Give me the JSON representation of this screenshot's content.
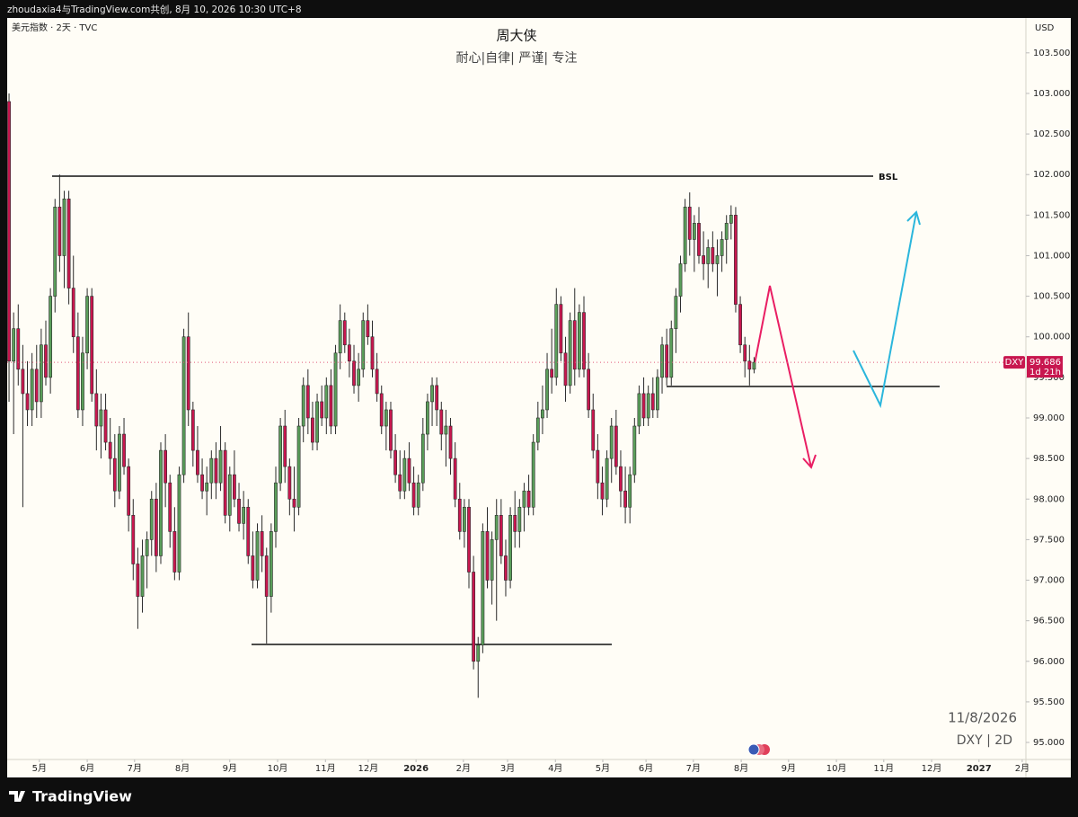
{
  "top_bar": "zhoudaxia4与TradingView.com共创, 8月 10, 2026 10:30 UTC+8",
  "footer": {
    "brand": "TradingView"
  },
  "chart_data": {
    "type": "candlestick",
    "title": "周大侠",
    "subtitle": "耐心|自律| 严谨| 专注",
    "symbol_label": "美元指数 · 2天 · TVC",
    "currency": "USD",
    "annotation": "BSL",
    "price_tag": "DXY",
    "countdown": "1d 21h",
    "last_price": 99.686,
    "watermark": [
      "11/8/2026",
      "DXY | 2D"
    ],
    "up_color": "#5a9e5a",
    "down_color": "#c8174f",
    "xlim": [
      -0.4,
      221.1
    ],
    "xticks": [
      {
        "value": 6.6,
        "label": "5月"
      },
      {
        "value": 17.0,
        "label": "6月"
      },
      {
        "value": 27.3,
        "label": "7月"
      },
      {
        "value": 37.7,
        "label": "8月"
      },
      {
        "value": 48.0,
        "label": "9月"
      },
      {
        "value": 58.4,
        "label": "10月"
      },
      {
        "value": 68.8,
        "label": "11月"
      },
      {
        "value": 78.1,
        "label": "12月"
      },
      {
        "value": 88.5,
        "label": "2026"
      },
      {
        "value": 98.8,
        "label": "2月"
      },
      {
        "value": 108.4,
        "label": "3月"
      },
      {
        "value": 118.8,
        "label": "4月"
      },
      {
        "value": 129.1,
        "label": "5月"
      },
      {
        "value": 138.5,
        "label": "6月"
      },
      {
        "value": 148.8,
        "label": "7月"
      },
      {
        "value": 159.2,
        "label": "8月"
      },
      {
        "value": 169.5,
        "label": "9月"
      },
      {
        "value": 179.9,
        "label": "10月"
      },
      {
        "value": 190.2,
        "label": "11月"
      },
      {
        "value": 200.6,
        "label": "12月"
      },
      {
        "value": 210.9,
        "label": "2027"
      },
      {
        "value": 220.3,
        "label": "2月"
      }
    ],
    "ylim": [
      94.79,
      103.93
    ],
    "yticks": [
      {
        "value": 95,
        "label": "95.000"
      },
      {
        "value": 95.5,
        "label": "95.500"
      },
      {
        "value": 96,
        "label": "96.000"
      },
      {
        "value": 96.5,
        "label": "96.500"
      },
      {
        "value": 97,
        "label": "97.000"
      },
      {
        "value": 97.5,
        "label": "97.500"
      },
      {
        "value": 98,
        "label": "98.000"
      },
      {
        "value": 98.5,
        "label": "98.500"
      },
      {
        "value": 99,
        "label": "99.000"
      },
      {
        "value": 99.5,
        "label": "99.500"
      },
      {
        "value": 100,
        "label": "100.000"
      },
      {
        "value": 100.5,
        "label": "100.500"
      },
      {
        "value": 101,
        "label": "101.000"
      },
      {
        "value": 101.5,
        "label": "101.500"
      },
      {
        "value": 102,
        "label": "102.000"
      },
      {
        "value": 102.5,
        "label": "102.500"
      },
      {
        "value": 103,
        "label": "103.000"
      },
      {
        "value": 103.5,
        "label": "103.500"
      }
    ],
    "ohlc": [
      [
        102.9,
        103.0,
        99.2,
        99.7
      ],
      [
        99.7,
        100.3,
        98.8,
        100.1
      ],
      [
        100.1,
        100.4,
        99.4,
        99.6
      ],
      [
        99.6,
        99.9,
        97.9,
        99.3
      ],
      [
        99.3,
        99.7,
        98.9,
        99.1
      ],
      [
        99.1,
        99.8,
        98.9,
        99.6
      ],
      [
        99.6,
        99.9,
        99.0,
        99.2
      ],
      [
        99.2,
        100.1,
        99.0,
        99.9
      ],
      [
        99.9,
        100.2,
        99.4,
        99.5
      ],
      [
        99.5,
        100.6,
        99.3,
        100.5
      ],
      [
        100.5,
        101.7,
        100.3,
        101.6
      ],
      [
        101.6,
        102.0,
        100.8,
        101.0
      ],
      [
        101.0,
        101.8,
        100.6,
        101.7
      ],
      [
        101.7,
        101.8,
        100.4,
        100.6
      ],
      [
        100.6,
        101.0,
        99.8,
        100.0
      ],
      [
        100.0,
        100.3,
        99.0,
        99.1
      ],
      [
        99.1,
        100.0,
        98.9,
        99.8
      ],
      [
        99.8,
        100.6,
        99.6,
        100.5
      ],
      [
        100.5,
        100.6,
        99.2,
        99.3
      ],
      [
        99.3,
        99.6,
        98.6,
        98.9
      ],
      [
        98.9,
        99.3,
        98.5,
        99.1
      ],
      [
        99.1,
        99.3,
        98.6,
        98.7
      ],
      [
        98.7,
        99.0,
        98.3,
        98.5
      ],
      [
        98.5,
        98.8,
        97.9,
        98.1
      ],
      [
        98.1,
        98.9,
        98.0,
        98.8
      ],
      [
        98.8,
        99.0,
        98.3,
        98.4
      ],
      [
        98.4,
        98.5,
        97.6,
        97.8
      ],
      [
        97.8,
        98.0,
        97.0,
        97.2
      ],
      [
        97.2,
        97.4,
        96.4,
        96.8
      ],
      [
        96.8,
        97.5,
        96.6,
        97.3
      ],
      [
        97.3,
        97.6,
        96.9,
        97.5
      ],
      [
        97.5,
        98.1,
        97.3,
        98.0
      ],
      [
        98.0,
        98.2,
        97.1,
        97.3
      ],
      [
        97.3,
        98.7,
        97.2,
        98.6
      ],
      [
        98.6,
        98.8,
        97.9,
        98.2
      ],
      [
        98.2,
        98.3,
        97.4,
        97.6
      ],
      [
        97.6,
        97.9,
        97.0,
        97.1
      ],
      [
        97.1,
        98.4,
        97.0,
        98.3
      ],
      [
        98.3,
        100.1,
        98.2,
        100.0
      ],
      [
        100.0,
        100.3,
        98.9,
        99.1
      ],
      [
        99.1,
        99.2,
        98.4,
        98.6
      ],
      [
        98.6,
        98.9,
        98.2,
        98.3
      ],
      [
        98.3,
        98.5,
        98.0,
        98.1
      ],
      [
        98.1,
        98.4,
        97.8,
        98.2
      ],
      [
        98.2,
        98.6,
        98.0,
        98.5
      ],
      [
        98.5,
        98.7,
        98.0,
        98.2
      ],
      [
        98.2,
        98.9,
        98.1,
        98.6
      ],
      [
        98.6,
        98.7,
        97.7,
        97.8
      ],
      [
        97.8,
        98.4,
        97.6,
        98.3
      ],
      [
        98.3,
        98.6,
        97.9,
        98.0
      ],
      [
        98.0,
        98.2,
        97.6,
        97.7
      ],
      [
        97.7,
        98.1,
        97.5,
        97.9
      ],
      [
        97.9,
        98.0,
        97.2,
        97.3
      ],
      [
        97.3,
        97.6,
        96.9,
        97.0
      ],
      [
        97.0,
        97.7,
        96.9,
        97.6
      ],
      [
        97.6,
        97.8,
        97.1,
        97.3
      ],
      [
        97.3,
        97.4,
        96.22,
        96.8
      ],
      [
        96.8,
        97.7,
        96.6,
        97.6
      ],
      [
        97.6,
        98.4,
        97.4,
        98.2
      ],
      [
        98.2,
        99.0,
        98.1,
        98.9
      ],
      [
        98.9,
        99.1,
        98.2,
        98.4
      ],
      [
        98.4,
        98.5,
        97.8,
        98.0
      ],
      [
        98.0,
        98.4,
        97.6,
        97.9
      ],
      [
        97.9,
        99.0,
        97.8,
        98.9
      ],
      [
        98.9,
        99.5,
        98.7,
        99.4
      ],
      [
        99.4,
        99.6,
        98.8,
        99.0
      ],
      [
        99.0,
        99.2,
        98.6,
        98.7
      ],
      [
        98.7,
        99.3,
        98.6,
        99.2
      ],
      [
        99.2,
        99.4,
        98.9,
        99.0
      ],
      [
        99.0,
        99.5,
        98.8,
        99.4
      ],
      [
        99.4,
        99.6,
        98.8,
        98.9
      ],
      [
        98.9,
        99.9,
        98.8,
        99.8
      ],
      [
        99.8,
        100.4,
        99.6,
        100.2
      ],
      [
        100.2,
        100.3,
        99.8,
        99.9
      ],
      [
        99.9,
        100.1,
        99.5,
        99.7
      ],
      [
        99.7,
        99.9,
        99.3,
        99.4
      ],
      [
        99.4,
        99.8,
        99.2,
        99.6
      ],
      [
        99.6,
        100.3,
        99.5,
        100.2
      ],
      [
        100.2,
        100.4,
        99.9,
        100.0
      ],
      [
        100.0,
        100.2,
        99.5,
        99.6
      ],
      [
        99.6,
        99.8,
        99.2,
        99.3
      ],
      [
        99.3,
        99.4,
        98.8,
        98.9
      ],
      [
        98.9,
        99.2,
        98.6,
        99.1
      ],
      [
        99.1,
        99.2,
        98.5,
        98.6
      ],
      [
        98.6,
        98.8,
        98.2,
        98.3
      ],
      [
        98.3,
        98.6,
        98.0,
        98.1
      ],
      [
        98.1,
        98.6,
        98.0,
        98.5
      ],
      [
        98.5,
        98.7,
        98.1,
        98.2
      ],
      [
        98.2,
        98.4,
        97.8,
        97.9
      ],
      [
        97.9,
        98.3,
        97.8,
        98.2
      ],
      [
        98.2,
        99.0,
        98.1,
        98.8
      ],
      [
        98.8,
        99.3,
        98.6,
        99.2
      ],
      [
        99.2,
        99.5,
        98.9,
        99.4
      ],
      [
        99.4,
        99.5,
        98.9,
        99.1
      ],
      [
        99.1,
        99.2,
        98.6,
        98.8
      ],
      [
        98.8,
        99.1,
        98.4,
        98.9
      ],
      [
        98.9,
        99.0,
        98.3,
        98.5
      ],
      [
        98.5,
        98.7,
        97.9,
        98.0
      ],
      [
        98.0,
        98.2,
        97.5,
        97.6
      ],
      [
        97.6,
        98.0,
        97.4,
        97.9
      ],
      [
        97.9,
        98.0,
        96.9,
        97.1
      ],
      [
        97.1,
        97.3,
        95.9,
        96.0
      ],
      [
        96.0,
        96.3,
        95.55,
        96.2
      ],
      [
        96.2,
        97.7,
        96.1,
        97.6
      ],
      [
        97.6,
        97.9,
        96.9,
        97.0
      ],
      [
        97.0,
        97.6,
        96.7,
        97.5
      ],
      [
        97.5,
        98.0,
        96.5,
        97.8
      ],
      [
        97.8,
        98.0,
        97.2,
        97.3
      ],
      [
        97.3,
        97.5,
        96.8,
        97.0
      ],
      [
        97.0,
        97.9,
        96.9,
        97.8
      ],
      [
        97.8,
        98.1,
        97.4,
        97.6
      ],
      [
        97.6,
        98.0,
        97.4,
        97.9
      ],
      [
        97.9,
        98.2,
        97.6,
        98.1
      ],
      [
        98.1,
        98.3,
        97.8,
        97.9
      ],
      [
        97.9,
        98.8,
        97.8,
        98.7
      ],
      [
        98.7,
        99.2,
        98.6,
        99.0
      ],
      [
        99.0,
        99.4,
        98.8,
        99.1
      ],
      [
        99.1,
        99.8,
        99.0,
        99.6
      ],
      [
        99.6,
        100.1,
        99.3,
        99.5
      ],
      [
        99.5,
        100.6,
        99.4,
        100.4
      ],
      [
        100.4,
        100.5,
        99.7,
        99.8
      ],
      [
        99.8,
        100.0,
        99.2,
        99.4
      ],
      [
        99.4,
        100.3,
        99.3,
        100.2
      ],
      [
        100.2,
        100.6,
        99.4,
        99.6
      ],
      [
        99.6,
        100.4,
        99.5,
        100.3
      ],
      [
        100.3,
        100.5,
        99.5,
        99.6
      ],
      [
        99.6,
        99.8,
        99.0,
        99.1
      ],
      [
        99.1,
        99.3,
        98.5,
        98.6
      ],
      [
        98.6,
        98.8,
        98.0,
        98.2
      ],
      [
        98.2,
        98.4,
        97.8,
        98.0
      ],
      [
        98.0,
        98.6,
        97.9,
        98.5
      ],
      [
        98.5,
        99.0,
        98.2,
        98.9
      ],
      [
        98.9,
        99.1,
        98.3,
        98.4
      ],
      [
        98.4,
        98.6,
        97.9,
        98.1
      ],
      [
        98.1,
        98.4,
        97.7,
        97.9
      ],
      [
        97.9,
        98.4,
        97.7,
        98.3
      ],
      [
        98.3,
        99.0,
        98.2,
        98.9
      ],
      [
        98.9,
        99.4,
        98.8,
        99.3
      ],
      [
        99.3,
        99.5,
        98.9,
        99.0
      ],
      [
        99.0,
        99.4,
        98.9,
        99.3
      ],
      [
        99.3,
        99.5,
        99.0,
        99.1
      ],
      [
        99.1,
        99.6,
        99.0,
        99.5
      ],
      [
        99.5,
        100.0,
        99.3,
        99.9
      ],
      [
        99.9,
        100.1,
        99.4,
        99.5
      ],
      [
        99.5,
        100.2,
        99.4,
        100.1
      ],
      [
        100.1,
        100.6,
        99.8,
        100.5
      ],
      [
        100.5,
        101.0,
        100.3,
        100.9
      ],
      [
        100.9,
        101.7,
        100.8,
        101.6
      ],
      [
        101.6,
        101.78,
        101.0,
        101.2
      ],
      [
        101.2,
        101.5,
        100.8,
        101.4
      ],
      [
        101.4,
        101.6,
        100.9,
        101.0
      ],
      [
        101.0,
        101.3,
        100.7,
        100.9
      ],
      [
        100.9,
        101.2,
        100.6,
        101.1
      ],
      [
        101.1,
        101.3,
        100.8,
        100.9
      ],
      [
        100.9,
        101.2,
        100.5,
        101.0
      ],
      [
        101.0,
        101.3,
        100.8,
        101.2
      ],
      [
        101.2,
        101.5,
        100.9,
        101.4
      ],
      [
        101.4,
        101.62,
        101.2,
        101.5
      ],
      [
        101.5,
        101.6,
        100.3,
        100.4
      ],
      [
        100.4,
        100.5,
        99.8,
        99.9
      ],
      [
        99.9,
        100.0,
        99.5,
        99.7
      ],
      [
        99.7,
        99.9,
        99.4,
        99.6
      ],
      [
        99.6,
        99.75,
        99.55,
        99.686
      ]
    ]
  }
}
